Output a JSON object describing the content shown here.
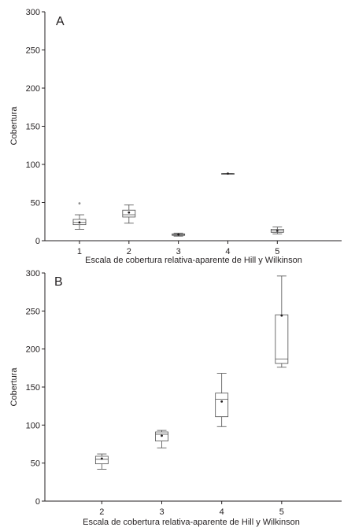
{
  "chart_data": [
    {
      "type": "box",
      "panel_label": "A",
      "xlabel": "Escala de cobertura relativa-aparente de Hill y Wilkinson",
      "ylabel": "Cobertura",
      "ylim": [
        0,
        300
      ],
      "yticks": [
        0,
        50,
        100,
        150,
        200,
        250,
        300
      ],
      "xlim": [
        0.3,
        6.3
      ],
      "categories": [
        "1",
        "2",
        "3",
        "4",
        "5"
      ],
      "boxes": [
        {
          "x": 1,
          "label": "1",
          "whisker_low": 15,
          "q1": 21,
          "median": 24,
          "q3": 28,
          "whisker_high": 34,
          "mean": 24,
          "outliers": [
            49
          ]
        },
        {
          "x": 2,
          "label": "2",
          "whisker_low": 23,
          "q1": 31,
          "median": 34,
          "q3": 40,
          "whisker_high": 47,
          "mean": 37,
          "outliers": []
        },
        {
          "x": 3,
          "label": "3",
          "whisker_low": 6,
          "q1": 7,
          "median": 8,
          "q3": 9,
          "whisker_high": 10,
          "mean": 8,
          "outliers": []
        },
        {
          "x": 4,
          "label": "4",
          "whisker_low": 88,
          "q1": 88,
          "median": 88,
          "q3": 88,
          "whisker_high": 88,
          "mean": 88,
          "outliers": []
        },
        {
          "x": 5,
          "label": "5",
          "whisker_low": 9,
          "q1": 11,
          "median": 13,
          "q3": 15,
          "whisker_high": 18,
          "mean": 13,
          "outliers": []
        }
      ]
    },
    {
      "type": "box",
      "panel_label": "B",
      "xlabel": "Escala de cobertura relativa-aparente de Hill y Wilkinson",
      "ylabel": "Cobertura",
      "ylim": [
        0,
        300
      ],
      "yticks": [
        0,
        50,
        100,
        150,
        200,
        250,
        300
      ],
      "xlim": [
        1.05,
        6.0
      ],
      "categories": [
        "2",
        "3",
        "4",
        "5"
      ],
      "boxes": [
        {
          "x": 2,
          "label": "2",
          "whisker_low": 42,
          "q1": 49,
          "median": 55,
          "q3": 59,
          "whisker_high": 62,
          "mean": 56,
          "outliers": []
        },
        {
          "x": 3,
          "label": "3",
          "whisker_low": 70,
          "q1": 79,
          "median": 88,
          "q3": 91,
          "whisker_high": 93,
          "mean": 86,
          "outliers": []
        },
        {
          "x": 4,
          "label": "4",
          "whisker_low": 98,
          "q1": 111,
          "median": 134,
          "q3": 142,
          "whisker_high": 168,
          "mean": 131,
          "outliers": []
        },
        {
          "x": 5,
          "label": "5",
          "whisker_low": 176,
          "q1": 181,
          "median": 187,
          "q3": 245,
          "whisker_high": 296,
          "mean": 244,
          "outliers": []
        }
      ]
    }
  ]
}
